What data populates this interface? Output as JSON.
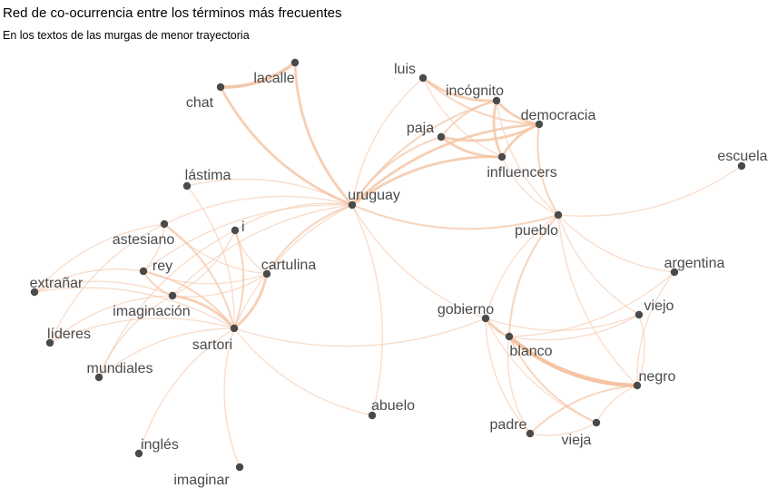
{
  "title": "Red de co-ocurrencia entre los términos más frecuentes",
  "subtitle": "En los textos de las murgas de menor trayectoria",
  "colors": {
    "edge": "#f4c4a3",
    "node": "#4a4a4a",
    "label": "#4a4a4a"
  },
  "nodes": [
    {
      "id": "lacalle",
      "label": "lacalle"
    },
    {
      "id": "chat",
      "label": "chat"
    },
    {
      "id": "luis",
      "label": "luis"
    },
    {
      "id": "incognito",
      "label": "incógnito"
    },
    {
      "id": "democracia",
      "label": "democracia"
    },
    {
      "id": "paja",
      "label": "paja"
    },
    {
      "id": "influencers",
      "label": "influencers"
    },
    {
      "id": "escuela",
      "label": "escuela"
    },
    {
      "id": "lastima",
      "label": "lástima"
    },
    {
      "id": "uruguay",
      "label": "uruguay"
    },
    {
      "id": "pueblo",
      "label": "pueblo"
    },
    {
      "id": "astesiano",
      "label": "astesiano"
    },
    {
      "id": "i",
      "label": "i"
    },
    {
      "id": "cartulina",
      "label": "cartulina"
    },
    {
      "id": "rey",
      "label": "rey"
    },
    {
      "id": "argentina",
      "label": "argentina"
    },
    {
      "id": "extranar",
      "label": "extrañar"
    },
    {
      "id": "imaginacion",
      "label": "imaginación"
    },
    {
      "id": "gobierno",
      "label": "gobierno"
    },
    {
      "id": "viejo",
      "label": "viejo"
    },
    {
      "id": "lideres",
      "label": "líderes"
    },
    {
      "id": "sartori",
      "label": "sartori"
    },
    {
      "id": "blanco",
      "label": "blanco"
    },
    {
      "id": "mundiales",
      "label": "mundiales"
    },
    {
      "id": "negro",
      "label": "negro"
    },
    {
      "id": "abuelo",
      "label": "abuelo"
    },
    {
      "id": "padre",
      "label": "padre"
    },
    {
      "id": "vieja",
      "label": "vieja"
    },
    {
      "id": "ingles",
      "label": "inglés"
    },
    {
      "id": "imaginar",
      "label": "imaginar"
    }
  ],
  "edges": [
    {
      "from": "chat",
      "to": "lacalle",
      "weight": 4
    },
    {
      "from": "lacalle",
      "to": "uruguay",
      "weight": 3
    },
    {
      "from": "chat",
      "to": "uruguay",
      "weight": 3
    },
    {
      "from": "luis",
      "to": "incognito",
      "weight": 3
    },
    {
      "from": "luis",
      "to": "democracia",
      "weight": 2
    },
    {
      "from": "luis",
      "to": "influencers",
      "weight": 1
    },
    {
      "from": "luis",
      "to": "uruguay",
      "weight": 1
    },
    {
      "from": "incognito",
      "to": "democracia",
      "weight": 3
    },
    {
      "from": "incognito",
      "to": "paja",
      "weight": 2
    },
    {
      "from": "incognito",
      "to": "influencers",
      "weight": 3
    },
    {
      "from": "incognito",
      "to": "uruguay",
      "weight": 2
    },
    {
      "from": "paja",
      "to": "democracia",
      "weight": 3
    },
    {
      "from": "paja",
      "to": "influencers",
      "weight": 3
    },
    {
      "from": "paja",
      "to": "uruguay",
      "weight": 2
    },
    {
      "from": "democracia",
      "to": "influencers",
      "weight": 3
    },
    {
      "from": "democracia",
      "to": "uruguay",
      "weight": 3
    },
    {
      "from": "democracia",
      "to": "pueblo",
      "weight": 2
    },
    {
      "from": "influencers",
      "to": "uruguay",
      "weight": 3
    },
    {
      "from": "influencers",
      "to": "pueblo",
      "weight": 1
    },
    {
      "from": "incognito",
      "to": "pueblo",
      "weight": 1
    },
    {
      "from": "uruguay",
      "to": "pueblo",
      "weight": 2
    },
    {
      "from": "uruguay",
      "to": "cartulina",
      "weight": 2
    },
    {
      "from": "uruguay",
      "to": "astesiano",
      "weight": 1
    },
    {
      "from": "uruguay",
      "to": "rey",
      "weight": 1
    },
    {
      "from": "uruguay",
      "to": "imaginacion",
      "weight": 1
    },
    {
      "from": "uruguay",
      "to": "sartori",
      "weight": 1
    },
    {
      "from": "uruguay",
      "to": "gobierno",
      "weight": 1
    },
    {
      "from": "uruguay",
      "to": "lastima",
      "weight": 1
    },
    {
      "from": "uruguay",
      "to": "i",
      "weight": 1
    },
    {
      "from": "pueblo",
      "to": "escuela",
      "weight": 1
    },
    {
      "from": "pueblo",
      "to": "argentina",
      "weight": 1
    },
    {
      "from": "pueblo",
      "to": "viejo",
      "weight": 1
    },
    {
      "from": "pueblo",
      "to": "gobierno",
      "weight": 1
    },
    {
      "from": "pueblo",
      "to": "blanco",
      "weight": 2
    },
    {
      "from": "pueblo",
      "to": "negro",
      "weight": 1
    },
    {
      "from": "gobierno",
      "to": "blanco",
      "weight": 2
    },
    {
      "from": "gobierno",
      "to": "negro",
      "weight": 2
    },
    {
      "from": "gobierno",
      "to": "padre",
      "weight": 1
    },
    {
      "from": "gobierno",
      "to": "vieja",
      "weight": 1
    },
    {
      "from": "gobierno",
      "to": "viejo",
      "weight": 1
    },
    {
      "from": "blanco",
      "to": "negro",
      "weight": 5
    },
    {
      "from": "blanco",
      "to": "padre",
      "weight": 1
    },
    {
      "from": "blanco",
      "to": "vieja",
      "weight": 2
    },
    {
      "from": "blanco",
      "to": "viejo",
      "weight": 1
    },
    {
      "from": "blanco",
      "to": "argentina",
      "weight": 1
    },
    {
      "from": "negro",
      "to": "padre",
      "weight": 2
    },
    {
      "from": "negro",
      "to": "vieja",
      "weight": 1
    },
    {
      "from": "negro",
      "to": "viejo",
      "weight": 1
    },
    {
      "from": "padre",
      "to": "vieja",
      "weight": 1
    },
    {
      "from": "sartori",
      "to": "cartulina",
      "weight": 3
    },
    {
      "from": "sartori",
      "to": "imaginacion",
      "weight": 3
    },
    {
      "from": "sartori",
      "to": "rey",
      "weight": 2
    },
    {
      "from": "sartori",
      "to": "astesiano",
      "weight": 2
    },
    {
      "from": "sartori",
      "to": "i",
      "weight": 2
    },
    {
      "from": "sartori",
      "to": "lastima",
      "weight": 1
    },
    {
      "from": "sartori",
      "to": "extranar",
      "weight": 1
    },
    {
      "from": "sartori",
      "to": "lideres",
      "weight": 1
    },
    {
      "from": "sartori",
      "to": "mundiales",
      "weight": 1
    },
    {
      "from": "sartori",
      "to": "ingles",
      "weight": 1
    },
    {
      "from": "sartori",
      "to": "imaginar",
      "weight": 1
    },
    {
      "from": "sartori",
      "to": "abuelo",
      "weight": 1
    },
    {
      "from": "sartori",
      "to": "gobierno",
      "weight": 1
    },
    {
      "from": "rey",
      "to": "imaginacion",
      "weight": 2
    },
    {
      "from": "rey",
      "to": "cartulina",
      "weight": 1
    },
    {
      "from": "rey",
      "to": "extranar",
      "weight": 1
    },
    {
      "from": "rey",
      "to": "astesiano",
      "weight": 1
    },
    {
      "from": "imaginacion",
      "to": "extranar",
      "weight": 1
    },
    {
      "from": "imaginacion",
      "to": "lideres",
      "weight": 1
    },
    {
      "from": "imaginacion",
      "to": "mundiales",
      "weight": 1
    },
    {
      "from": "imaginacion",
      "to": "cartulina",
      "weight": 1
    },
    {
      "from": "imaginacion",
      "to": "i",
      "weight": 1
    },
    {
      "from": "astesiano",
      "to": "cartulina",
      "weight": 1
    },
    {
      "from": "astesiano",
      "to": "extranar",
      "weight": 1
    },
    {
      "from": "astesiano",
      "to": "lideres",
      "weight": 1
    },
    {
      "from": "i",
      "to": "cartulina",
      "weight": 1
    },
    {
      "from": "i",
      "to": "mundiales",
      "weight": 1
    },
    {
      "from": "abuelo",
      "to": "uruguay",
      "weight": 1
    },
    {
      "from": "argentina",
      "to": "negro",
      "weight": 1
    }
  ]
}
